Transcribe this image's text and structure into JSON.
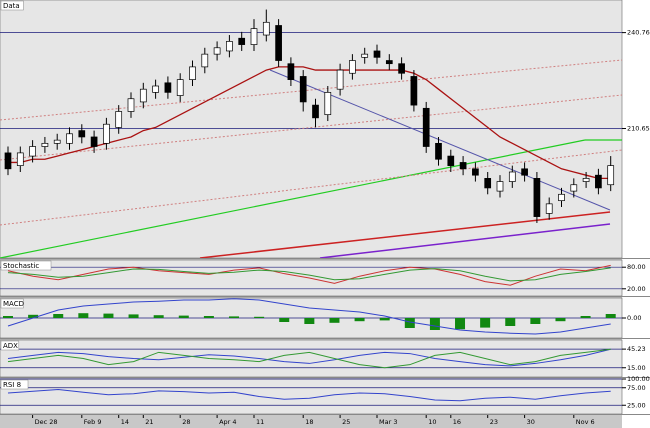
{
  "chart_data": [
    {
      "type": "candlestick",
      "title": "Data",
      "categories": [
        null,
        null,
        "Dec 28",
        null,
        null,
        null,
        "Feb 9",
        null,
        null,
        "14",
        null,
        "21",
        null,
        null,
        "28",
        null,
        null,
        "Apr 4",
        null,
        null,
        "11",
        null,
        null,
        null,
        "18",
        null,
        null,
        "25",
        null,
        null,
        "Mar 3",
        null,
        null,
        null,
        "10",
        null,
        "16",
        null,
        null,
        "23",
        null,
        null,
        "30",
        null,
        null,
        null,
        "Nov 6",
        null,
        null,
        null
      ],
      "open": [
        203,
        199,
        202,
        205,
        206,
        206,
        210,
        208,
        206,
        211,
        216,
        219,
        222,
        225,
        221,
        226,
        230,
        234,
        235,
        239,
        237,
        240,
        243,
        231,
        227,
        218,
        215,
        223,
        228,
        233,
        235,
        232,
        231,
        227,
        217,
        206,
        202,
        200,
        198,
        195,
        191,
        194,
        198,
        195,
        184,
        188,
        191,
        194,
        196,
        193
      ],
      "high": [
        205,
        205,
        207,
        208,
        209,
        211,
        212,
        210,
        214,
        218,
        222,
        225,
        226,
        227,
        228,
        232,
        236,
        238,
        240,
        241,
        245,
        248,
        245,
        233,
        229,
        220,
        224,
        231,
        234,
        236,
        237,
        234,
        233,
        229,
        219,
        208,
        204,
        202,
        200,
        197,
        196,
        199,
        200,
        197,
        189,
        192,
        195,
        197,
        198,
        202
      ],
      "low": [
        196,
        197,
        200,
        203,
        204,
        204,
        206,
        203,
        204,
        209,
        214,
        217,
        220,
        220,
        219,
        224,
        228,
        232,
        233,
        235,
        235,
        238,
        230,
        224,
        216,
        211,
        213,
        221,
        226,
        231,
        231,
        229,
        226,
        216,
        203,
        199,
        197,
        196,
        194,
        190,
        189,
        192,
        194,
        181,
        182,
        186,
        189,
        192,
        190,
        191
      ],
      "close": [
        198,
        203,
        205,
        206,
        207,
        209,
        208,
        205,
        212,
        216,
        220,
        223,
        224,
        222,
        226,
        230,
        234,
        236,
        238,
        237,
        242,
        244,
        232,
        226,
        219,
        214,
        222,
        229,
        232,
        234,
        233,
        231,
        228,
        218,
        205,
        201,
        199,
        198,
        196,
        192,
        194,
        197,
        196,
        183,
        187,
        190,
        193,
        195,
        192,
        199
      ],
      "series": [
        {
          "color": "#aa1111",
          "values": [
            200,
            200,
            201,
            201,
            202,
            203,
            204,
            205,
            206,
            207,
            208,
            210,
            211,
            213,
            215,
            217,
            219,
            221,
            223,
            225,
            227,
            229,
            230,
            230,
            230,
            229,
            229,
            229,
            229,
            229,
            229,
            229,
            229,
            228,
            226,
            223,
            220,
            217,
            214,
            211,
            208,
            206,
            204,
            202,
            200,
            198,
            197,
            196,
            195,
            195
          ]
        }
      ],
      "up_color": "#ffffff",
      "down_color": "#000000",
      "ylim": [
        170,
        251
      ],
      "yticks": [
        240.76,
        210.65
      ],
      "grid": true
    },
    {
      "type": "line",
      "title": "Stochastic",
      "series": [
        {
          "color": "#cc3333",
          "values": [
            70,
            55,
            45,
            60,
            75,
            80,
            70,
            65,
            60,
            72,
            78,
            62,
            50,
            35,
            55,
            70,
            80,
            75,
            60,
            40,
            30,
            55,
            75,
            70,
            85
          ]
        },
        {
          "color": "#339933",
          "values": [
            65,
            60,
            52,
            55,
            65,
            75,
            74,
            68,
            63,
            66,
            72,
            68,
            58,
            45,
            48,
            60,
            72,
            76,
            70,
            55,
            42,
            45,
            60,
            68,
            78
          ]
        }
      ],
      "ylim": [
        0,
        100
      ],
      "yticks": [
        {
          "value": 80,
          "label": "80.00"
        },
        {
          "value": 20,
          "label": "20.00"
        }
      ],
      "grid": true
    },
    {
      "type": "line",
      "title": "MACD",
      "series": [
        {
          "color": "#118811",
          "style": "bar",
          "values": [
            0.5,
            0.8,
            1.0,
            1.2,
            1.1,
            0.9,
            0.7,
            0.6,
            0.5,
            0.4,
            0.3,
            -1.0,
            -1.5,
            -1.2,
            -0.8,
            -0.6,
            -2.5,
            -3.0,
            -2.8,
            -2.4,
            -2.0,
            -1.5,
            -0.8,
            0.5,
            1.0
          ]
        },
        {
          "color": "#3344cc",
          "values": [
            -2,
            0,
            2,
            3,
            3.5,
            4,
            4.2,
            4.5,
            4.5,
            4.8,
            4.5,
            3.5,
            2.5,
            2,
            1.5,
            0.5,
            -1,
            -2,
            -3,
            -3.5,
            -3.8,
            -4,
            -3.5,
            -2.5,
            -1.5
          ]
        }
      ],
      "ylim": [
        -5,
        5
      ],
      "yticks": [
        {
          "value": 0,
          "label": "0.00"
        }
      ],
      "grid": true
    },
    {
      "type": "line",
      "title": "ADX",
      "series": [
        {
          "color": "#3344cc",
          "values": [
            30,
            35,
            40,
            38,
            33,
            30,
            28,
            32,
            36,
            34,
            30,
            25,
            22,
            28,
            35,
            40,
            38,
            30,
            25,
            20,
            18,
            22,
            28,
            35,
            45
          ]
        },
        {
          "color": "#339933",
          "values": [
            25,
            30,
            35,
            30,
            20,
            25,
            40,
            35,
            30,
            28,
            25,
            35,
            40,
            30,
            20,
            15,
            20,
            35,
            40,
            30,
            20,
            25,
            35,
            40,
            45
          ]
        }
      ],
      "ylim": [
        0,
        60
      ],
      "yticks": [
        45.23,
        {
          "value": 15,
          "label": "15.00"
        }
      ],
      "grid": true
    },
    {
      "type": "line",
      "title": "RSI 8",
      "series": [
        {
          "color": "#3344cc",
          "values": [
            60,
            65,
            70,
            62,
            55,
            58,
            66,
            64,
            60,
            62,
            50,
            42,
            45,
            55,
            60,
            58,
            50,
            40,
            38,
            45,
            48,
            42,
            52,
            60,
            65
          ]
        }
      ],
      "ylim": [
        0,
        100
      ],
      "yticks": [
        {
          "value": 100,
          "label": "100.00"
        },
        {
          "value": 75,
          "label": "75.00"
        },
        {
          "value": 25,
          "label": "25.00"
        }
      ],
      "grid": true
    }
  ]
}
